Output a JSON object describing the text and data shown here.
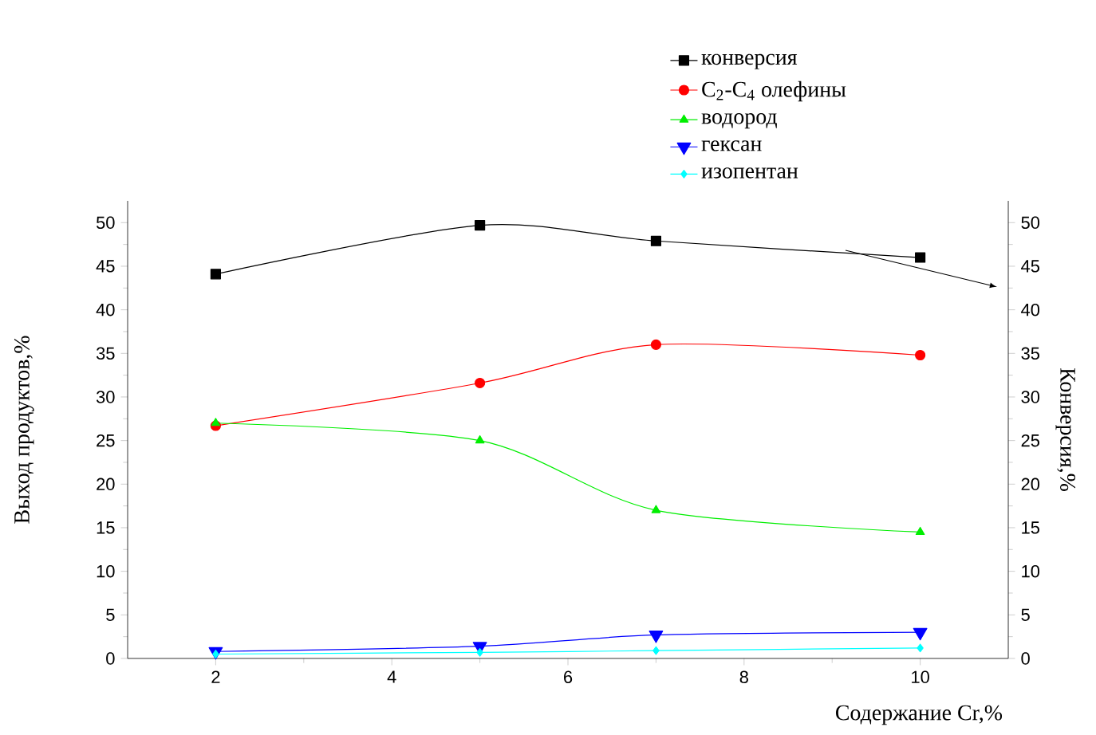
{
  "chart_data": {
    "type": "line",
    "xlabel": "Содержание Cr,%",
    "ylabel": "Выход продуктов,%",
    "y2label": "Конверсия,%",
    "x": [
      2,
      5,
      7,
      10
    ],
    "xlim": [
      1,
      11
    ],
    "xticks": [
      2,
      4,
      6,
      8,
      10
    ],
    "ylim": [
      0,
      52.5
    ],
    "yticks": [
      0,
      5,
      10,
      15,
      20,
      25,
      30,
      35,
      40,
      45,
      50
    ],
    "y2lim": [
      0,
      52.5
    ],
    "y2ticks": [
      0,
      5,
      10,
      15,
      20,
      25,
      30,
      35,
      40,
      45,
      50
    ],
    "legend": "top right",
    "grid": false,
    "line_style": "solid",
    "series": [
      {
        "name": "конверсия",
        "color": "#000000",
        "marker": "square",
        "axis": "y2",
        "values": [
          44.1,
          49.7,
          47.9,
          46.0
        ]
      },
      {
        "name": "C$_{2}$-C$_{4}$ олефины",
        "color": "#ff0000",
        "marker": "circle",
        "values": [
          26.7,
          31.6,
          36.0,
          34.8
        ]
      },
      {
        "name": "водород",
        "color": "#00ee00",
        "marker": "triangle",
        "values": [
          27.0,
          25.0,
          17.0,
          14.5
        ]
      },
      {
        "name": "гексан",
        "color": "#0000ff",
        "marker": "triangle-down",
        "values": [
          0.8,
          1.4,
          2.7,
          3.0
        ]
      },
      {
        "name": "изопентан",
        "color": "#00ffff",
        "marker": "diamond",
        "values": [
          0.5,
          0.7,
          0.9,
          1.2
        ]
      }
    ]
  }
}
